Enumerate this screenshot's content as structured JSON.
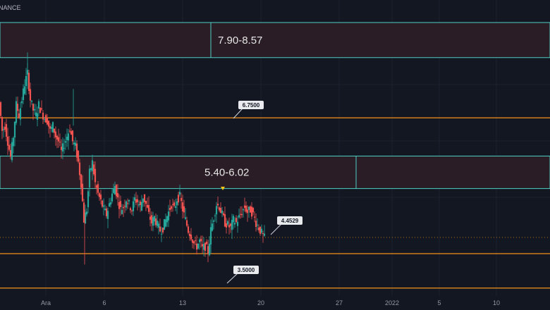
{
  "header": {
    "ticker_text": "NANCE"
  },
  "colors": {
    "background": "#131722",
    "zone_fill": "#2a1d25",
    "zone_border": "#4dd0c4",
    "level_line": "#f7931a",
    "up_candle": "#26a69a",
    "down_candle": "#ef5350",
    "callout_bg": "#e8eaed"
  },
  "chart_data": {
    "type": "candlestick",
    "price_range": [
      3.35,
      9.0
    ],
    "x_tick_labels": [
      "Ara",
      "6",
      "13",
      "20",
      "27",
      "2022",
      "5",
      "10"
    ],
    "zones": [
      {
        "label": "7.90-8.57",
        "low": 7.9,
        "high": 8.57
      },
      {
        "label": "5.40-6.02",
        "low": 5.4,
        "high": 6.02
      }
    ],
    "levels": [
      {
        "label": "6.7500",
        "value": 6.75
      },
      {
        "label": "4.4529",
        "value": 4.4529
      },
      {
        "label": "3.5000",
        "value": 3.5
      }
    ],
    "close_path": [
      {
        "x": 0,
        "y": 7.05
      },
      {
        "x": 4,
        "y": 6.5
      },
      {
        "x": 8,
        "y": 6.6
      },
      {
        "x": 12,
        "y": 6.3
      },
      {
        "x": 16,
        "y": 6.0
      },
      {
        "x": 20,
        "y": 6.4
      },
      {
        "x": 24,
        "y": 7.0
      },
      {
        "x": 28,
        "y": 6.8
      },
      {
        "x": 32,
        "y": 7.1
      },
      {
        "x": 36,
        "y": 7.4
      },
      {
        "x": 40,
        "y": 7.6
      },
      {
        "x": 44,
        "y": 7.1
      },
      {
        "x": 48,
        "y": 6.9
      },
      {
        "x": 52,
        "y": 6.8
      },
      {
        "x": 56,
        "y": 7.0
      },
      {
        "x": 60,
        "y": 6.85
      },
      {
        "x": 64,
        "y": 6.75
      },
      {
        "x": 68,
        "y": 6.7
      },
      {
        "x": 72,
        "y": 6.5
      },
      {
        "x": 76,
        "y": 6.6
      },
      {
        "x": 80,
        "y": 6.4
      },
      {
        "x": 84,
        "y": 6.3
      },
      {
        "x": 88,
        "y": 6.1
      },
      {
        "x": 92,
        "y": 6.25
      },
      {
        "x": 96,
        "y": 6.4
      },
      {
        "x": 100,
        "y": 6.55
      },
      {
        "x": 104,
        "y": 6.3
      },
      {
        "x": 108,
        "y": 6.2
      },
      {
        "x": 112,
        "y": 5.9
      },
      {
        "x": 116,
        "y": 5.5
      },
      {
        "x": 120,
        "y": 4.8
      },
      {
        "x": 124,
        "y": 5.0
      },
      {
        "x": 128,
        "y": 5.7
      },
      {
        "x": 132,
        "y": 5.9
      },
      {
        "x": 136,
        "y": 5.5
      },
      {
        "x": 140,
        "y": 5.3
      },
      {
        "x": 144,
        "y": 5.15
      },
      {
        "x": 148,
        "y": 5.0
      },
      {
        "x": 152,
        "y": 4.9
      },
      {
        "x": 156,
        "y": 5.1
      },
      {
        "x": 160,
        "y": 5.3
      },
      {
        "x": 164,
        "y": 5.45
      },
      {
        "x": 168,
        "y": 5.2
      },
      {
        "x": 172,
        "y": 5.0
      },
      {
        "x": 176,
        "y": 5.05
      },
      {
        "x": 180,
        "y": 5.2
      },
      {
        "x": 184,
        "y": 5.1
      },
      {
        "x": 188,
        "y": 5.0
      },
      {
        "x": 192,
        "y": 5.2
      },
      {
        "x": 196,
        "y": 5.15
      },
      {
        "x": 200,
        "y": 5.05
      },
      {
        "x": 204,
        "y": 5.25
      },
      {
        "x": 208,
        "y": 5.1
      },
      {
        "x": 212,
        "y": 4.9
      },
      {
        "x": 216,
        "y": 4.75
      },
      {
        "x": 220,
        "y": 4.85
      },
      {
        "x": 224,
        "y": 4.7
      },
      {
        "x": 228,
        "y": 4.6
      },
      {
        "x": 232,
        "y": 4.65
      },
      {
        "x": 236,
        "y": 4.8
      },
      {
        "x": 240,
        "y": 4.95
      },
      {
        "x": 244,
        "y": 5.1
      },
      {
        "x": 248,
        "y": 5.0
      },
      {
        "x": 252,
        "y": 5.2
      },
      {
        "x": 256,
        "y": 5.25
      },
      {
        "x": 260,
        "y": 5.0
      },
      {
        "x": 264,
        "y": 4.8
      },
      {
        "x": 268,
        "y": 4.6
      },
      {
        "x": 272,
        "y": 4.5
      },
      {
        "x": 276,
        "y": 4.35
      },
      {
        "x": 280,
        "y": 4.3
      },
      {
        "x": 284,
        "y": 4.4
      },
      {
        "x": 288,
        "y": 4.25
      },
      {
        "x": 292,
        "y": 4.3
      },
      {
        "x": 296,
        "y": 4.2
      },
      {
        "x": 300,
        "y": 4.6
      },
      {
        "x": 304,
        "y": 4.85
      },
      {
        "x": 308,
        "y": 5.1
      },
      {
        "x": 312,
        "y": 5.05
      },
      {
        "x": 316,
        "y": 4.9
      },
      {
        "x": 320,
        "y": 4.75
      },
      {
        "x": 324,
        "y": 4.7
      },
      {
        "x": 328,
        "y": 4.65
      },
      {
        "x": 332,
        "y": 4.8
      },
      {
        "x": 336,
        "y": 4.75
      },
      {
        "x": 340,
        "y": 4.85
      },
      {
        "x": 344,
        "y": 4.95
      },
      {
        "x": 348,
        "y": 5.05
      },
      {
        "x": 352,
        "y": 4.95
      },
      {
        "x": 356,
        "y": 5.0
      },
      {
        "x": 360,
        "y": 4.9
      },
      {
        "x": 364,
        "y": 4.75
      },
      {
        "x": 368,
        "y": 4.65
      },
      {
        "x": 372,
        "y": 4.55
      },
      {
        "x": 376,
        "y": 4.4529
      }
    ]
  }
}
